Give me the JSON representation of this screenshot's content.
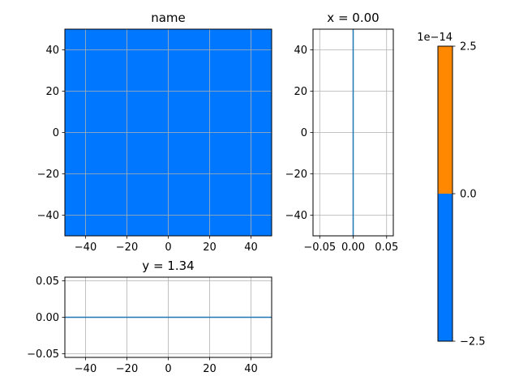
{
  "chart_data": [
    {
      "type": "heatmap",
      "title": "name",
      "xlim": [
        -50,
        50
      ],
      "ylim": [
        -50,
        50
      ],
      "xticks": [
        -40,
        -20,
        0,
        20,
        40
      ],
      "yticks": [
        -40,
        -20,
        0,
        20,
        40
      ],
      "xtick_labels": [
        "−40",
        "−20",
        "0",
        "20",
        "40"
      ],
      "ytick_labels": [
        "−40",
        "−20",
        "0",
        "20",
        "40"
      ],
      "grid": true,
      "values": [
        [
          0
        ]
      ],
      "fill_color": "#0077ff"
    },
    {
      "type": "line",
      "title": "x = 0.00",
      "xlim": [
        -0.06,
        0.06
      ],
      "ylim": [
        -50,
        50
      ],
      "xticks": [
        -0.05,
        0.0,
        0.05
      ],
      "yticks": [
        -40,
        -20,
        0,
        20,
        40
      ],
      "xtick_labels": [
        "−0.05",
        "0.00",
        "0.05"
      ],
      "ytick_labels": [
        "−40",
        "−20",
        "0",
        "20",
        "40"
      ],
      "grid": true,
      "series": [
        {
          "x": [
            0,
            0
          ],
          "y": [
            -50,
            50
          ],
          "color": "#1f77b4"
        }
      ]
    },
    {
      "type": "line",
      "title": "y = 1.34",
      "xlim": [
        -50,
        50
      ],
      "ylim": [
        -0.055,
        0.055
      ],
      "xticks": [
        -40,
        -20,
        0,
        20,
        40
      ],
      "yticks": [
        -0.05,
        0.0,
        0.05
      ],
      "xtick_labels": [
        "−40",
        "−20",
        "0",
        "20",
        "40"
      ],
      "ytick_labels": [
        "−0.05",
        "0.00",
        "0.05"
      ],
      "grid": true,
      "series": [
        {
          "x": [
            -50,
            50
          ],
          "y": [
            0,
            0
          ],
          "color": "#1f77b4"
        }
      ]
    },
    {
      "type": "colorbar",
      "range": [
        -2.5e-14,
        2.5e-14
      ],
      "offset_label": "1e−14",
      "ticks": [
        -2.5,
        0.0,
        2.5
      ],
      "tick_labels": [
        "−2.5",
        "0.0",
        "2.5"
      ],
      "segments": [
        {
          "from": -2.5,
          "to": 0.0,
          "color": "#0077ff"
        },
        {
          "from": 0.0,
          "to": 2.5,
          "color": "#ff8800"
        }
      ]
    }
  ]
}
